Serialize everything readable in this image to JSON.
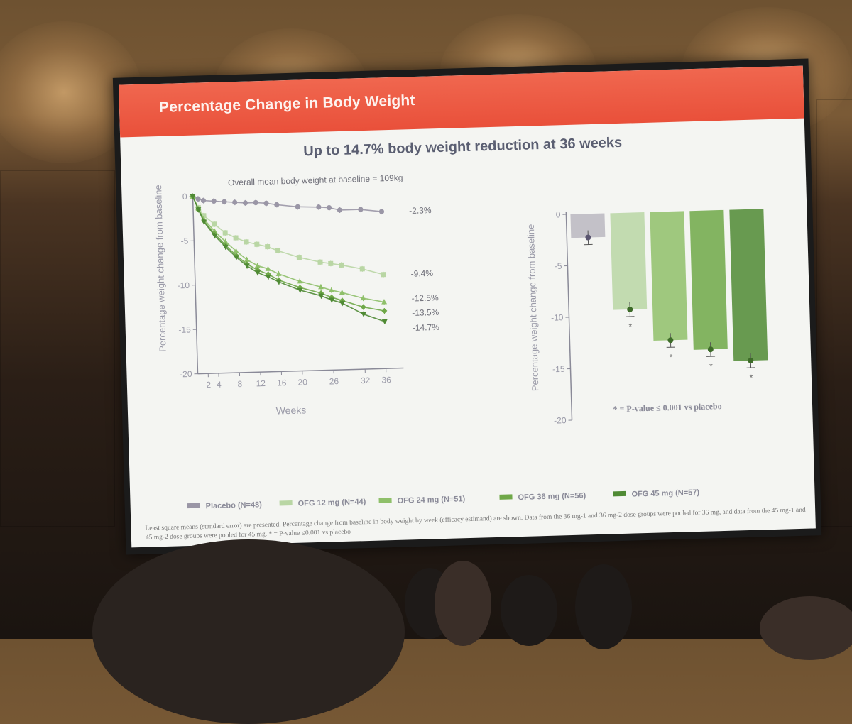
{
  "slide": {
    "title": "Percentage Change in Body Weight",
    "subtitle": "Up to 14.7% body weight reduction at 36 weeks",
    "footnote": "Least square means (standard error) are presented. Percentage change from baseline in body weight by week (efficacy estimand) are shown. Data from the 36 mg-1 and 36 mg-2 dose groups were pooled for 36 mg, and data from the 45 mg-1 and 45 mg-2 dose groups were pooled for 45 mg. * = P-value ≤0.001 vs placebo"
  },
  "colors": {
    "header_red": "#e9503a",
    "placebo": "#9a96a6",
    "ofg12": "#b9d6a4",
    "ofg24": "#8fc06a",
    "ofg36": "#6fa848",
    "ofg45": "#4f8a34"
  },
  "chart_data": [
    {
      "type": "line",
      "annotation": "Overall mean body weight at baseline  = 109kg",
      "xlabel": "Weeks",
      "ylabel": "Percentage weight change from baseline",
      "xticks": [
        2,
        4,
        8,
        12,
        16,
        20,
        26,
        32,
        36
      ],
      "yticks": [
        0,
        -5,
        -10,
        -15,
        -20
      ],
      "xlim": [
        0,
        38
      ],
      "ylim": [
        -20,
        0
      ],
      "series": [
        {
          "name": "Placebo (N=48)",
          "color": "#9a96a6",
          "end_label": "-2.3%",
          "x": [
            0,
            1,
            2,
            4,
            6,
            8,
            10,
            12,
            14,
            16,
            20,
            24,
            26,
            28,
            32,
            36
          ],
          "y": [
            0,
            -0.3,
            -0.5,
            -0.6,
            -0.7,
            -0.8,
            -0.9,
            -0.9,
            -1.0,
            -1.2,
            -1.5,
            -1.6,
            -1.7,
            -2.0,
            -2.0,
            -2.3
          ]
        },
        {
          "name": "OFG 12 mg (N=44)",
          "color": "#b9d6a4",
          "end_label": "-9.4%",
          "x": [
            0,
            1,
            2,
            4,
            6,
            8,
            10,
            12,
            14,
            16,
            20,
            24,
            26,
            28,
            32,
            36
          ],
          "y": [
            0,
            -1.3,
            -2.2,
            -3.2,
            -4.2,
            -4.8,
            -5.3,
            -5.6,
            -5.9,
            -6.4,
            -7.2,
            -7.8,
            -8.0,
            -8.2,
            -8.7,
            -9.4
          ]
        },
        {
          "name": "OFG 24 mg (N=51)",
          "color": "#8fc06a",
          "end_label": "-12.5%",
          "x": [
            0,
            1,
            2,
            4,
            6,
            8,
            10,
            12,
            14,
            16,
            20,
            24,
            26,
            28,
            32,
            36
          ],
          "y": [
            0,
            -1.4,
            -2.6,
            -4.0,
            -5.2,
            -6.3,
            -7.3,
            -8.0,
            -8.4,
            -9.0,
            -9.9,
            -10.6,
            -11.0,
            -11.3,
            -12.0,
            -12.5
          ]
        },
        {
          "name": "OFG 36 mg (N=56)",
          "color": "#6fa848",
          "end_label": "-13.5%",
          "x": [
            0,
            1,
            2,
            4,
            6,
            8,
            10,
            12,
            14,
            16,
            20,
            24,
            26,
            28,
            32,
            36
          ],
          "y": [
            0,
            -1.5,
            -2.8,
            -4.3,
            -5.6,
            -6.8,
            -7.8,
            -8.5,
            -9.0,
            -9.7,
            -10.6,
            -11.3,
            -11.8,
            -12.2,
            -13.0,
            -13.5
          ]
        },
        {
          "name": "OFG 45 mg (N=57)",
          "color": "#4f8a34",
          "end_label": "-14.7%",
          "x": [
            0,
            1,
            2,
            4,
            6,
            8,
            10,
            12,
            14,
            16,
            20,
            24,
            26,
            28,
            32,
            36
          ],
          "y": [
            0,
            -1.5,
            -2.9,
            -4.5,
            -5.8,
            -7.0,
            -8.0,
            -8.8,
            -9.3,
            -9.9,
            -10.9,
            -11.6,
            -12.1,
            -12.5,
            -13.8,
            -14.7
          ]
        }
      ]
    },
    {
      "type": "bar",
      "ylabel": "Percentage weight change from baseline",
      "yticks": [
        0,
        -5,
        -10,
        -15,
        -20
      ],
      "ylim": [
        -20,
        0
      ],
      "categories": [
        "Placebo (N=48)",
        "OFG 12 mg (N=44)",
        "OFG 24 mg (N=51)",
        "OFG 36 mg (N=56)",
        "OFG 45 mg (N=57)"
      ],
      "values": [
        -2.3,
        -9.4,
        -12.5,
        -13.5,
        -14.7
      ],
      "significance": [
        "",
        "*",
        "*",
        "*",
        "*"
      ],
      "note": "* = P-value ≤ 0.001 vs placebo"
    }
  ]
}
